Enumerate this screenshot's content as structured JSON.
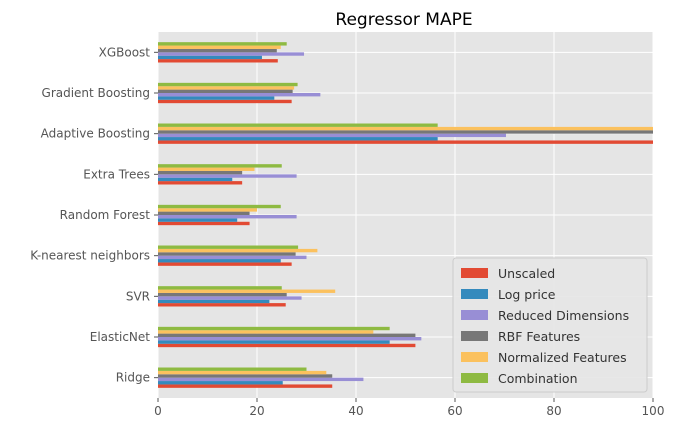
{
  "chart_data": {
    "type": "bar",
    "orientation": "horizontal",
    "title": "Regressor MAPE",
    "xlabel": "",
    "ylabel": "",
    "xlim": [
      0,
      100
    ],
    "xticks": [
      0,
      20,
      40,
      60,
      80,
      100
    ],
    "grid": true,
    "legend_position": "bottom-right",
    "categories": [
      "XGBoost",
      "Gradient Boosting",
      "Adaptive Boosting",
      "Extra Trees",
      "Random Forest",
      "K-nearest neighbors",
      "SVR",
      "ElasticNet",
      "Ridge"
    ],
    "series": [
      {
        "name": "Unscaled",
        "color": "#E24A33",
        "values": [
          24.2,
          27.0,
          100,
          17.0,
          18.5,
          27.0,
          25.8,
          52.0,
          35.2
        ]
      },
      {
        "name": "Log price",
        "color": "#348ABD",
        "values": [
          21.0,
          23.5,
          56.5,
          15.0,
          16.0,
          24.8,
          22.5,
          46.8,
          25.2
        ]
      },
      {
        "name": "Reduced Dimensions",
        "color": "#988ED5",
        "values": [
          29.5,
          32.8,
          70.3,
          28.0,
          28.0,
          30.0,
          29.0,
          53.2,
          41.5
        ]
      },
      {
        "name": "RBF Features",
        "color": "#777777",
        "values": [
          24.0,
          27.2,
          100,
          17.0,
          18.5,
          27.8,
          26.0,
          52.0,
          35.2
        ]
      },
      {
        "name": "Normalized Features",
        "color": "#FBC15E",
        "values": [
          24.8,
          27.5,
          100,
          19.5,
          20.0,
          32.2,
          35.8,
          43.5,
          34.0
        ]
      },
      {
        "name": "Combination",
        "color": "#8EBA42",
        "values": [
          26.0,
          28.2,
          56.5,
          25.0,
          24.8,
          28.3,
          25.0,
          46.8,
          30.0
        ]
      }
    ]
  }
}
